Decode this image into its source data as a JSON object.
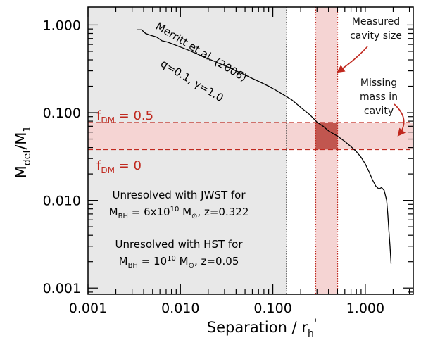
{
  "chart_data": {
    "type": "line",
    "xscale": "log",
    "yscale": "log",
    "xlim": [
      0.001,
      3.3
    ],
    "ylim": [
      0.00085,
      1.6
    ],
    "xticks": [
      {
        "value": 0.001,
        "label": "0.001"
      },
      {
        "value": 0.01,
        "label": "0.010"
      },
      {
        "value": 0.1,
        "label": "0.100"
      },
      {
        "value": 1,
        "label": "1.000"
      }
    ],
    "yticks": [
      {
        "value": 0.001,
        "label": "0.001"
      },
      {
        "value": 0.01,
        "label": "0.010"
      },
      {
        "value": 0.1,
        "label": "0.100"
      },
      {
        "value": 1,
        "label": "1.000"
      }
    ],
    "xlabel": {
      "main": "Separation  /  r",
      "sub": "h",
      "sup": "'"
    },
    "ylabel": {
      "main": "M",
      "sub": "def",
      "rest": "/M",
      "sub2": "1"
    },
    "series": [
      {
        "color": "#000000",
        "x": [
          0.0034,
          0.0038,
          0.0042,
          0.0048,
          0.0055,
          0.0063,
          0.0072,
          0.0085,
          0.01,
          0.012,
          0.015,
          0.018,
          0.022,
          0.027,
          0.033,
          0.04,
          0.05,
          0.06,
          0.075,
          0.09,
          0.11,
          0.13,
          0.16,
          0.2,
          0.25,
          0.3,
          0.35,
          0.4,
          0.5,
          0.6,
          0.7,
          0.8,
          0.9,
          1.0,
          1.1,
          1.2,
          1.3,
          1.4,
          1.5,
          1.6,
          1.7,
          1.75,
          1.8,
          1.85,
          1.9
        ],
        "y": [
          0.88,
          0.88,
          0.8,
          0.76,
          0.73,
          0.66,
          0.64,
          0.6,
          0.56,
          0.52,
          0.47,
          0.43,
          0.395,
          0.36,
          0.33,
          0.3,
          0.27,
          0.245,
          0.22,
          0.2,
          0.178,
          0.16,
          0.14,
          0.115,
          0.095,
          0.078,
          0.07,
          0.062,
          0.054,
          0.047,
          0.041,
          0.036,
          0.031,
          0.026,
          0.021,
          0.017,
          0.0145,
          0.0135,
          0.014,
          0.013,
          0.01,
          0.007,
          0.0045,
          0.003,
          0.0019
        ]
      }
    ],
    "shaded_regions": [
      {
        "kind": "x-band",
        "x0": 0.001,
        "x1": 0.14,
        "color": "#e8e8e8"
      },
      {
        "kind": "y-band",
        "y0": 0.038,
        "y1": 0.077,
        "color": "#f5d4d3"
      },
      {
        "kind": "x-band",
        "x0": 0.29,
        "x1": 0.5,
        "color": "#f5d4d3"
      },
      {
        "kind": "box",
        "x0": 0.29,
        "x1": 0.5,
        "y0": 0.038,
        "y1": 0.077,
        "color": "#c1564f"
      }
    ],
    "reference_lines": [
      {
        "orientation": "horizontal",
        "value": 0.077,
        "style": "dashed",
        "color": "#c0281e"
      },
      {
        "orientation": "horizontal",
        "value": 0.038,
        "style": "dashed",
        "color": "#c0281e"
      },
      {
        "orientation": "vertical",
        "value": 0.14,
        "style": "dotted",
        "color": "#444444"
      },
      {
        "orientation": "vertical",
        "value": 0.29,
        "style": "dotted",
        "color": "#c0281e"
      },
      {
        "orientation": "vertical",
        "value": 0.5,
        "style": "dotted",
        "color": "#c0281e"
      }
    ],
    "annotations": {
      "merritt_title": "Merritt et al. (2006)",
      "merritt_params": "q=0.1, γ=1.0",
      "fdm_high": {
        "main": "f",
        "sub": "DM",
        "rest": " = 0.5"
      },
      "fdm_low": {
        "main": "f",
        "sub": "DM",
        "rest": " = 0"
      },
      "measured_line1": "Measured",
      "measured_line2": "cavity size",
      "missing_line1": "Missing",
      "missing_line2": "mass in",
      "missing_line3": "cavity",
      "jwst_line1": "Unresolved with JWST for",
      "jwst_line2": {
        "m": "M",
        "sub": "BH",
        "eq": " = 6x10",
        "sup": "10",
        "unit": " M",
        "sun": "⊙",
        "tail": ",  z=0.322"
      },
      "hst_line1": "Unresolved with HST for",
      "hst_line2": {
        "m": "M",
        "sub": "BH",
        "eq": " = 10",
        "sup": "10",
        "unit": " M",
        "sun": "⊙",
        "tail": ",  z=0.05"
      }
    }
  }
}
